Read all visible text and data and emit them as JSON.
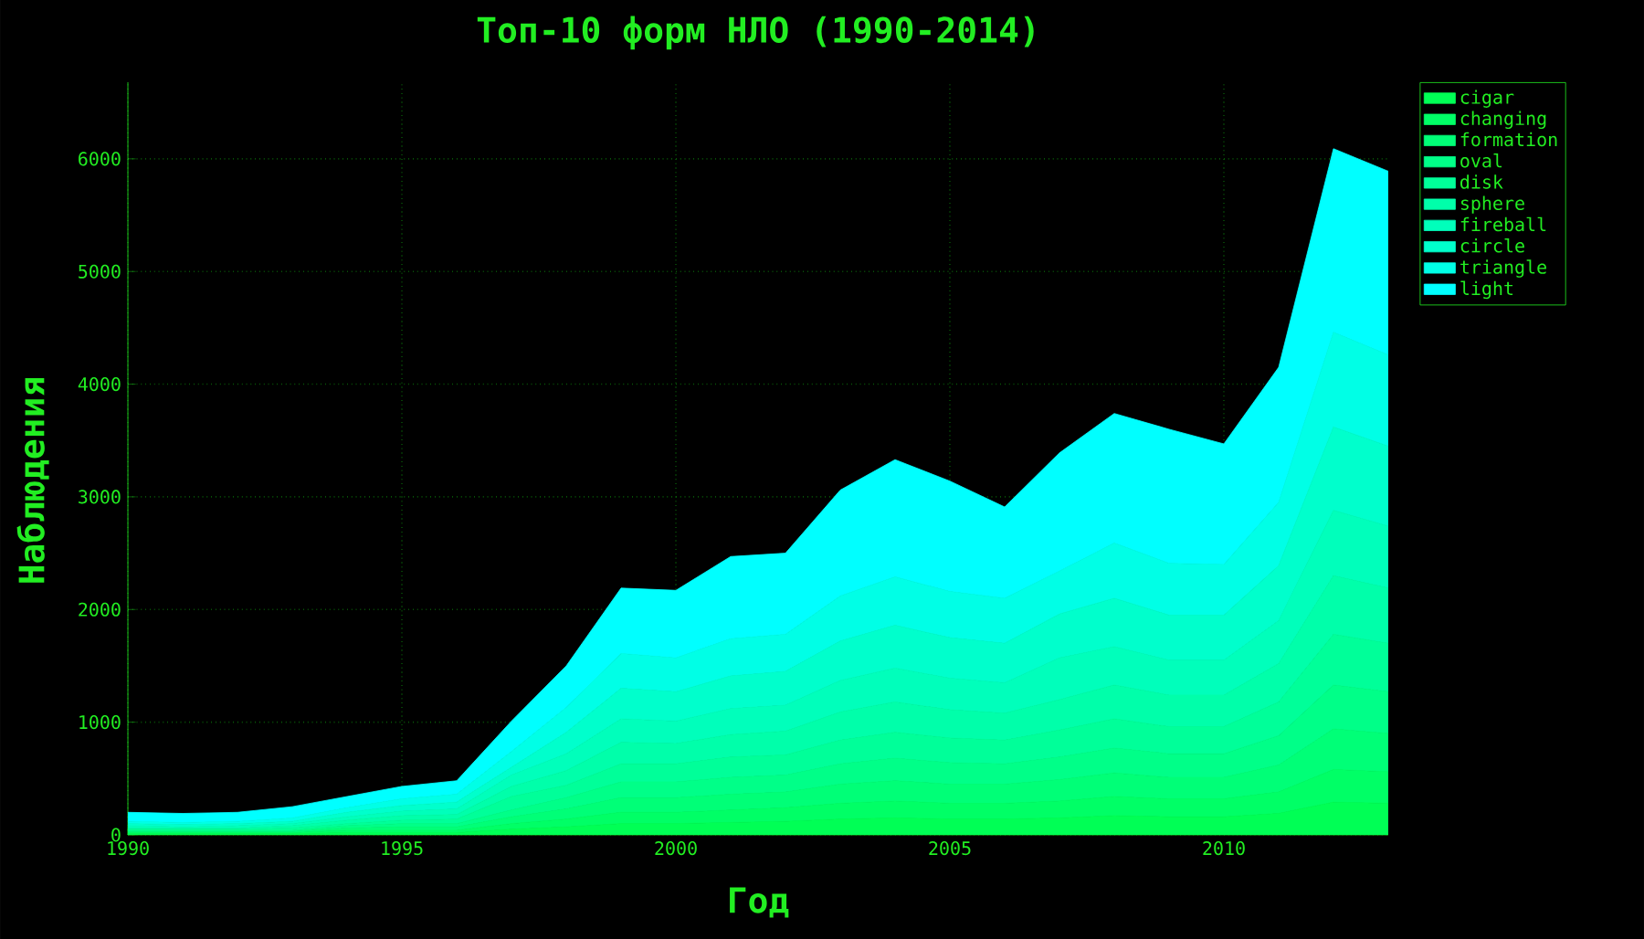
{
  "chart_data": {
    "type": "area",
    "stacked": true,
    "title": "Топ-10 форм НЛО (1990-2014)",
    "xlabel": "Год",
    "ylabel": "Наблюдения",
    "x": [
      1990,
      1991,
      1992,
      1993,
      1994,
      1995,
      1996,
      1997,
      1998,
      1999,
      2000,
      2001,
      2002,
      2003,
      2004,
      2005,
      2006,
      2007,
      2008,
      2009,
      2010,
      2011,
      2012,
      2013
    ],
    "series": [
      {
        "name": "cigar",
        "color": "#00ff55",
        "values": [
          10,
          10,
          10,
          10,
          20,
          20,
          20,
          50,
          70,
          100,
          100,
          110,
          120,
          140,
          150,
          140,
          140,
          150,
          170,
          160,
          160,
          190,
          290,
          280
        ]
      },
      {
        "name": "changing",
        "color": "#00ff66",
        "values": [
          10,
          10,
          10,
          10,
          20,
          20,
          20,
          50,
          70,
          100,
          100,
          110,
          120,
          140,
          150,
          140,
          140,
          150,
          170,
          160,
          160,
          190,
          290,
          280
        ]
      },
      {
        "name": "formation",
        "color": "#00ff77",
        "values": [
          10,
          10,
          10,
          10,
          20,
          30,
          30,
          60,
          90,
          130,
          130,
          140,
          140,
          170,
          180,
          170,
          170,
          190,
          210,
          190,
          190,
          240,
          360,
          340
        ]
      },
      {
        "name": "oval",
        "color": "#00ff88",
        "values": [
          10,
          10,
          10,
          10,
          20,
          30,
          30,
          60,
          100,
          140,
          140,
          150,
          150,
          180,
          200,
          190,
          180,
          200,
          220,
          210,
          210,
          260,
          390,
          370
        ]
      },
      {
        "name": "disk",
        "color": "#00ff99",
        "values": [
          10,
          10,
          10,
          20,
          20,
          30,
          40,
          120,
          110,
          160,
          160,
          180,
          180,
          210,
          230,
          220,
          210,
          240,
          260,
          240,
          240,
          300,
          450,
          430
        ]
      },
      {
        "name": "sphere",
        "color": "#00ffaa",
        "values": [
          10,
          10,
          10,
          20,
          30,
          40,
          40,
          90,
          130,
          190,
          180,
          200,
          210,
          250,
          270,
          250,
          240,
          270,
          300,
          280,
          280,
          340,
          520,
          490
        ]
      },
      {
        "name": "fireball",
        "color": "#00ffbb",
        "values": [
          20,
          10,
          20,
          20,
          30,
          40,
          50,
          100,
          150,
          210,
          200,
          230,
          230,
          280,
          300,
          280,
          270,
          370,
          340,
          310,
          310,
          380,
          580,
          550
        ]
      },
      {
        "name": "circle",
        "color": "#00ffcc",
        "values": [
          20,
          20,
          20,
          20,
          40,
          50,
          60,
          70,
          190,
          270,
          260,
          290,
          300,
          350,
          380,
          360,
          350,
          390,
          430,
          400,
          400,
          490,
          740,
          710
        ]
      },
      {
        "name": "triangle",
        "color": "#00ffe6",
        "values": [
          20,
          20,
          20,
          30,
          40,
          60,
          70,
          140,
          220,
          310,
          300,
          330,
          330,
          400,
          430,
          410,
          400,
          380,
          490,
          460,
          450,
          560,
          840,
          810
        ]
      },
      {
        "name": "light",
        "color": "#00ffff",
        "values": [
          80,
          80,
          80,
          100,
          100,
          110,
          120,
          270,
          370,
          580,
          600,
          730,
          720,
          940,
          1040,
          980,
          810,
          1050,
          1150,
          1190,
          1070,
          1200,
          1630,
          1630
        ]
      }
    ],
    "xlim": [
      1990,
      2013
    ],
    "ylim": [
      0,
      6680
    ],
    "xticks": [
      1990,
      1995,
      2000,
      2005,
      2010
    ],
    "yticks": [
      0,
      1000,
      2000,
      3000,
      4000,
      5000,
      6000
    ],
    "grid": true,
    "legend": "top right"
  }
}
